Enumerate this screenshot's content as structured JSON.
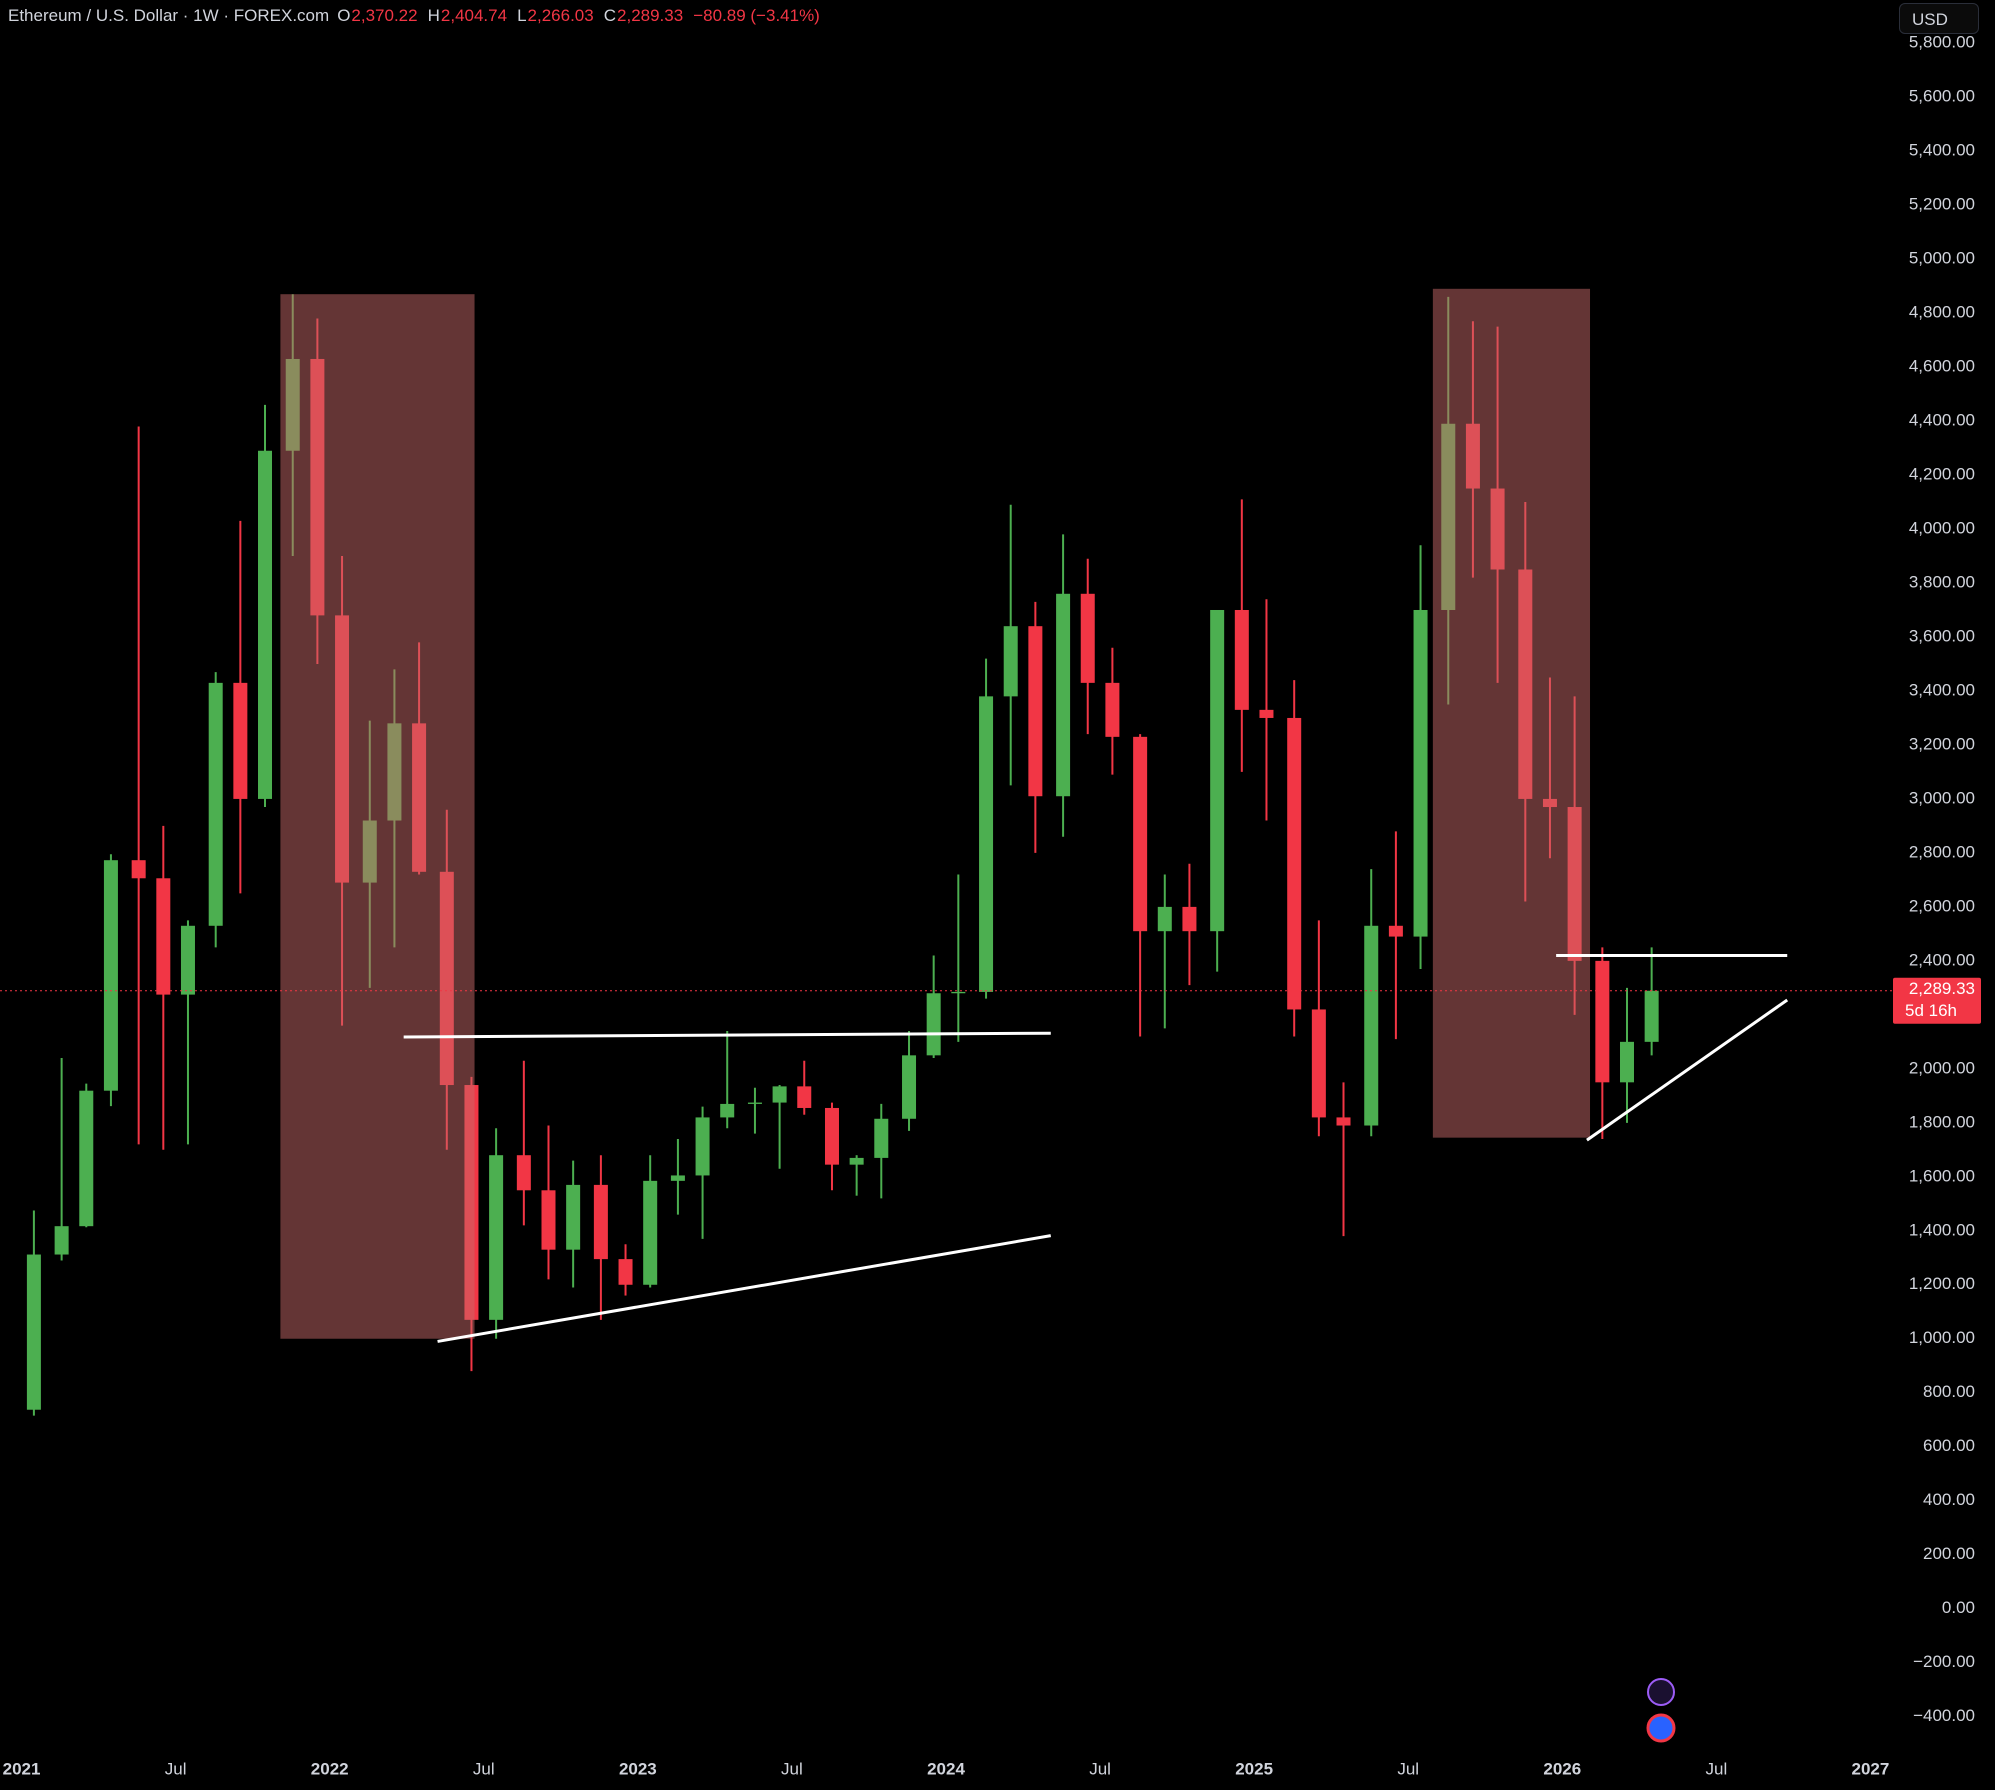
{
  "chart_data": {
    "type": "candlestick",
    "header": {
      "symbol": "Ethereum / U.S. Dollar · 1W · FOREX.com",
      "open_key": "O",
      "open": "2,370.22",
      "high_key": "H",
      "high": "2,404.74",
      "low_key": "L",
      "low": "2,266.03",
      "close_key": "C",
      "close": "2,289.33",
      "change": "−80.89 (−3.41%)"
    },
    "currency": "USD",
    "up_color": "#4caf50",
    "down_color": "#f23645",
    "x": [
      2021.04,
      2021.13,
      2021.21,
      2021.29,
      2021.38,
      2021.46,
      2021.54,
      2021.63,
      2021.71,
      2021.79,
      2021.88,
      2021.96,
      2022.04,
      2022.13,
      2022.21,
      2022.29,
      2022.38,
      2022.46,
      2022.54,
      2022.63,
      2022.71,
      2022.79,
      2022.88,
      2022.96,
      2023.04,
      2023.13,
      2023.21,
      2023.29,
      2023.38,
      2023.46,
      2023.54,
      2023.63,
      2023.71,
      2023.79,
      2023.88,
      2023.96,
      2024.04,
      2024.13,
      2024.21,
      2024.29,
      2024.38,
      2024.46,
      2024.54,
      2024.63,
      2024.71,
      2024.79,
      2024.88,
      2024.96,
      2025.04,
      2025.13,
      2025.21,
      2025.29,
      2025.38,
      2025.46,
      2025.54,
      2025.63,
      2025.71,
      2025.79,
      2025.88,
      2025.96,
      2026.04,
      2026.13,
      2026.21,
      2026.29
    ],
    "open": [
      737,
      1312,
      1417,
      1919,
      2773,
      2706,
      2275,
      2530,
      3430,
      3000,
      4290,
      4630,
      3680,
      2690,
      2920,
      3280,
      2730,
      1940,
      1070,
      1680,
      1550,
      1330,
      1570,
      1295,
      1200,
      1585,
      1605,
      1820,
      1870,
      1875,
      1935,
      1855,
      1645,
      1670,
      1815,
      2050,
      2280,
      2285,
      3380,
      3640,
      3010,
      3760,
      3430,
      3230,
      2510,
      2600,
      2510,
      3700,
      3330,
      3300,
      2220,
      1820,
      1790,
      2530,
      2490,
      3700,
      4390,
      4150,
      3850,
      3000,
      2970,
      2400,
      1950,
      2100
    ],
    "high": [
      1475,
      2040,
      1945,
      2795,
      4380,
      2900,
      2550,
      3470,
      4030,
      4460,
      4870,
      4780,
      3900,
      3290,
      3480,
      3580,
      2960,
      1970,
      1780,
      2030,
      1790,
      1660,
      1680,
      1350,
      1680,
      1740,
      1860,
      2140,
      1930,
      1940,
      2030,
      1875,
      1680,
      1870,
      2140,
      2420,
      2720,
      3520,
      4090,
      3730,
      3980,
      3890,
      3560,
      3240,
      2720,
      2760,
      3700,
      4110,
      3740,
      3440,
      2550,
      1950,
      2740,
      2880,
      3940,
      4860,
      4770,
      4750,
      4100,
      3450,
      3380,
      2450,
      2300,
      2450
    ],
    "low": [
      715,
      1290,
      1413,
      1862,
      1720,
      1700,
      1720,
      2450,
      2650,
      2970,
      3900,
      3500,
      2160,
      2300,
      2450,
      2720,
      1700,
      880,
      1000,
      1420,
      1220,
      1190,
      1070,
      1160,
      1190,
      1460,
      1370,
      1780,
      1760,
      1630,
      1830,
      1550,
      1530,
      1520,
      1770,
      2040,
      2100,
      2260,
      3050,
      2800,
      2860,
      3240,
      3090,
      2120,
      2150,
      2310,
      2360,
      3100,
      2920,
      2120,
      1750,
      1380,
      1750,
      2110,
      2370,
      3350,
      3820,
      3430,
      2620,
      2780,
      2200,
      1740,
      1800,
      2050
    ],
    "close": [
      1312,
      1417,
      1919,
      2773,
      2706,
      2275,
      2530,
      3430,
      3000,
      4290,
      4630,
      3680,
      2690,
      2920,
      3280,
      2730,
      1940,
      1070,
      1680,
      1550,
      1330,
      1570,
      1295,
      1200,
      1585,
      1605,
      1820,
      1870,
      1875,
      1935,
      1855,
      1645,
      1670,
      1815,
      2050,
      2280,
      2285,
      3380,
      3640,
      3010,
      3760,
      3430,
      3230,
      2510,
      2600,
      2510,
      3700,
      3330,
      3300,
      2220,
      1820,
      1790,
      2530,
      2490,
      3700,
      4390,
      4150,
      3850,
      3000,
      2970,
      2400,
      1950,
      2100,
      2289.33
    ],
    "last_price": 2289.33,
    "last_price_label": "2,289.33",
    "countdown": "5d 16h",
    "zones": [
      {
        "x1": 2021.84,
        "x2": 2022.47,
        "y1": 1000,
        "y2": 4870,
        "color": "rgba(200,105,105,0.5)"
      },
      {
        "x1": 2025.58,
        "x2": 2026.09,
        "y1": 1745,
        "y2": 4890,
        "color": "rgba(200,105,105,0.5)"
      }
    ],
    "trendlines": [
      {
        "x1": 2022.24,
        "y1": 2118,
        "x2": 2024.34,
        "y2": 2132,
        "color": "#ffffff"
      },
      {
        "x1": 2022.35,
        "y1": 990,
        "x2": 2024.34,
        "y2": 1382,
        "color": "#ffffff"
      },
      {
        "x1": 2025.98,
        "y1": 2420,
        "x2": 2026.73,
        "y2": 2420,
        "color": "#ffffff"
      },
      {
        "x1": 2026.08,
        "y1": 1736,
        "x2": 2026.73,
        "y2": 2255,
        "color": "#ffffff"
      }
    ],
    "xlim": [
      2020.93,
      2027.07
    ],
    "xticks": [
      2021,
      {
        "value": 2021.5,
        "label": "Jul"
      },
      2022,
      {
        "value": 2022.5,
        "label": "Jul"
      },
      2023,
      {
        "value": 2023.5,
        "label": "Jul"
      },
      2024,
      {
        "value": 2024.5,
        "label": "Jul"
      },
      2025,
      {
        "value": 2025.5,
        "label": "Jul"
      },
      2026,
      {
        "value": 2026.5,
        "label": "Jul"
      },
      2027
    ],
    "ylim": [
      -520,
      5960
    ],
    "yticks": [
      {
        "value": -400,
        "label": "−400.00"
      },
      {
        "value": -200,
        "label": "−200.00"
      },
      {
        "value": 0,
        "label": "0.00"
      },
      {
        "value": 200,
        "label": "200.00"
      },
      {
        "value": 400,
        "label": "400.00"
      },
      {
        "value": 600,
        "label": "600.00"
      },
      {
        "value": 800,
        "label": "800.00"
      },
      {
        "value": 1000,
        "label": "1,000.00"
      },
      {
        "value": 1200,
        "label": "1,200.00"
      },
      {
        "value": 1400,
        "label": "1,400.00"
      },
      {
        "value": 1600,
        "label": "1,600.00"
      },
      {
        "value": 1800,
        "label": "1,800.00"
      },
      {
        "value": 2000,
        "label": "2,000.00"
      },
      {
        "value": 2200,
        "label": "2,200.00"
      },
      {
        "value": 2400,
        "label": "2,400.00"
      },
      {
        "value": 2600,
        "label": "2,600.00"
      },
      {
        "value": 2800,
        "label": "2,800.00"
      },
      {
        "value": 3000,
        "label": "3,000.00"
      },
      {
        "value": 3200,
        "label": "3,200.00"
      },
      {
        "value": 3400,
        "label": "3,400.00"
      },
      {
        "value": 3600,
        "label": "3,600.00"
      },
      {
        "value": 3800,
        "label": "3,800.00"
      },
      {
        "value": 4000,
        "label": "4,000.00"
      },
      {
        "value": 4200,
        "label": "4,200.00"
      },
      {
        "value": 4400,
        "label": "4,400.00"
      },
      {
        "value": 4600,
        "label": "4,600.00"
      },
      {
        "value": 4800,
        "label": "4,800.00"
      },
      {
        "value": 5000,
        "label": "5,000.00"
      },
      {
        "value": 5200,
        "label": "5,200.00"
      },
      {
        "value": 5400,
        "label": "5,400.00"
      },
      {
        "value": 5600,
        "label": "5,600.00"
      },
      {
        "value": 5800,
        "label": "5,800.00"
      }
    ],
    "grid": false
  }
}
